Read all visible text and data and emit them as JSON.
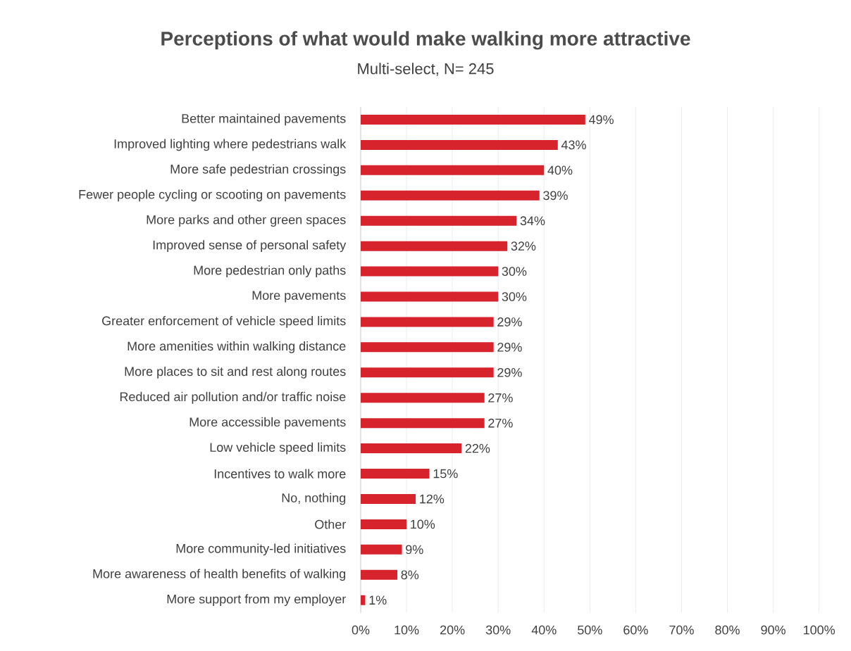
{
  "chart_data": {
    "type": "bar",
    "orientation": "horizontal",
    "title": "Perceptions of what would make walking more attractive",
    "subtitle": "Multi-select, N= 245",
    "categories": [
      "Better maintained pavements",
      "Improved lighting where pedestrians walk",
      "More safe pedestrian crossings",
      "Fewer people cycling or scooting on pavements",
      "More parks and other green spaces",
      "Improved sense of personal safety",
      "More pedestrian only paths",
      "More pavements",
      "Greater enforcement of vehicle speed limits",
      "More amenities within walking distance",
      "More places to sit and rest along routes",
      "Reduced air pollution and/or traffic noise",
      "More accessible pavements",
      "Low vehicle speed limits",
      "Incentives to walk more",
      "No, nothing",
      "Other",
      "More community-led initiatives",
      "More awareness of health benefits of walking",
      "More support from my employer"
    ],
    "values": [
      49,
      43,
      40,
      39,
      34,
      32,
      30,
      30,
      29,
      29,
      29,
      27,
      27,
      22,
      15,
      12,
      10,
      9,
      8,
      1
    ],
    "value_labels": [
      "49%",
      "43%",
      "40%",
      "39%",
      "34%",
      "32%",
      "30%",
      "30%",
      "29%",
      "29%",
      "29%",
      "27%",
      "27%",
      "22%",
      "15%",
      "12%",
      "10%",
      "9%",
      "8%",
      "1%"
    ],
    "color": "#d7232c",
    "xlim": [
      0,
      100
    ],
    "xticks": [
      {
        "value": 0,
        "label": "0%"
      },
      {
        "value": 10,
        "label": "10%"
      },
      {
        "value": 20,
        "label": "20%"
      },
      {
        "value": 30,
        "label": "30%"
      },
      {
        "value": 40,
        "label": "40%"
      },
      {
        "value": 50,
        "label": "50%"
      },
      {
        "value": 60,
        "label": "60%"
      },
      {
        "value": 70,
        "label": "70%"
      },
      {
        "value": 80,
        "label": "80%"
      },
      {
        "value": 90,
        "label": "90%"
      },
      {
        "value": 100,
        "label": "100%"
      }
    ],
    "grid": "x"
  }
}
